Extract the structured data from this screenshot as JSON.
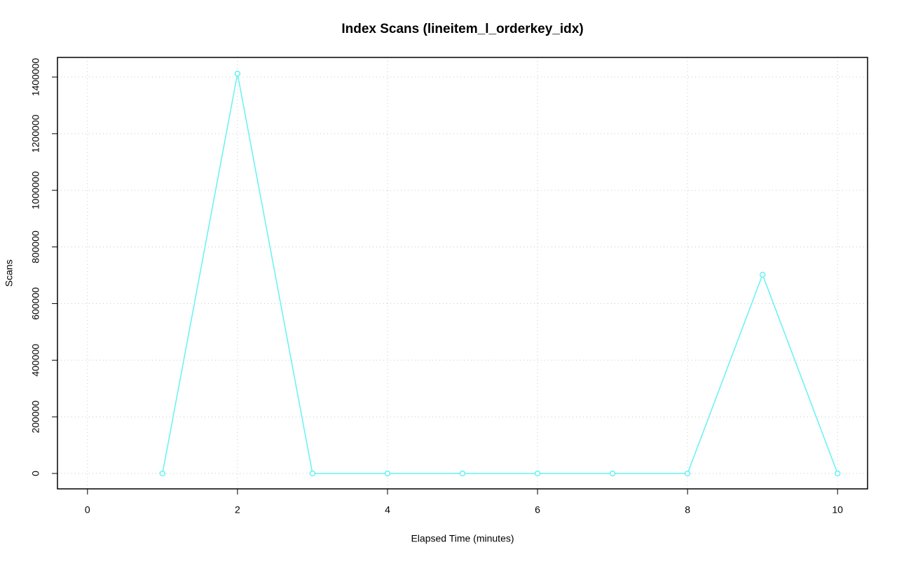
{
  "chart_data": {
    "type": "line",
    "title": "Index Scans (lineitem_l_orderkey_idx)",
    "x_label": "Elapsed Time (minutes)",
    "y_label": "Scans",
    "x": [
      1,
      2,
      3,
      4,
      5,
      6,
      7,
      8,
      9,
      10
    ],
    "series": [
      {
        "name": "lineitem_l_orderkey_idx",
        "color": "#66f2f2",
        "values": [
          0,
          1412000,
          0,
          0,
          0,
          0,
          0,
          0,
          702000,
          0
        ]
      }
    ],
    "xlim": [
      -0.4,
      10.4
    ],
    "ylim": [
      -54400,
      1469300
    ],
    "xticks": [
      0,
      2,
      4,
      6,
      8,
      10
    ],
    "yticks": [
      0,
      200000,
      400000,
      600000,
      800000,
      1000000,
      1200000,
      1400000
    ],
    "grid": true,
    "markers": "open-circle"
  }
}
